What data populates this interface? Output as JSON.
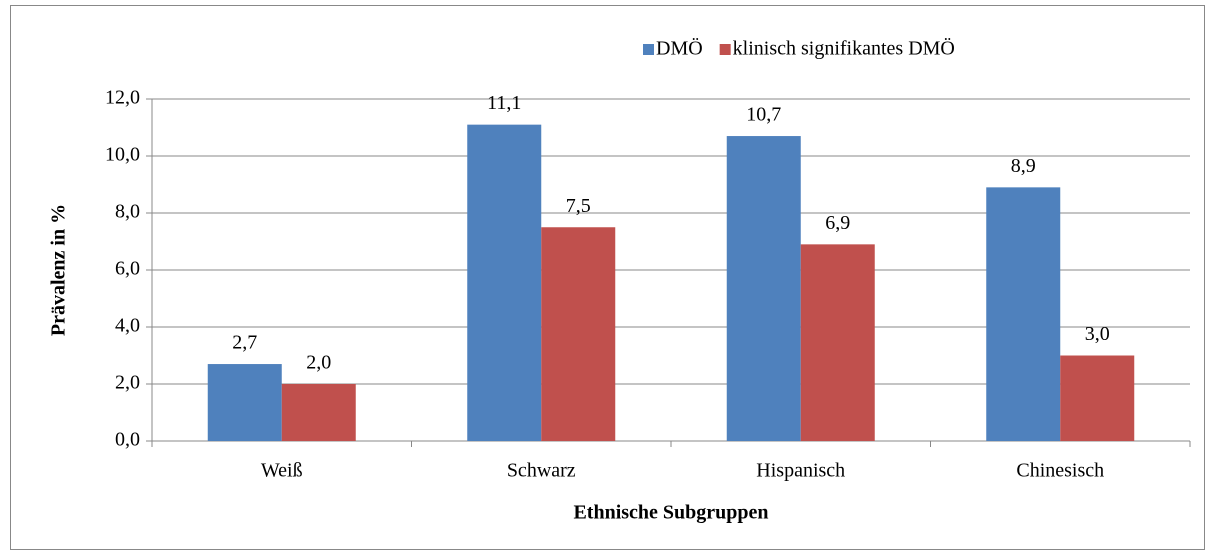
{
  "chart_data": {
    "type": "bar",
    "categories": [
      "Weiß",
      "Schwarz",
      "Hispanisch",
      "Chinesisch"
    ],
    "series": [
      {
        "name": "DMÖ",
        "color": "#4f81bd",
        "values": [
          2.7,
          11.1,
          10.7,
          8.9
        ],
        "value_labels": [
          "2,7",
          "11,1",
          "10,7",
          "8,9"
        ]
      },
      {
        "name": "klinisch signifikantes DMÖ",
        "color": "#c0504d",
        "values": [
          2.0,
          7.5,
          6.9,
          3.0
        ],
        "value_labels": [
          "2,0",
          "7,5",
          "6,9",
          "3,0"
        ]
      }
    ],
    "ylim": [
      0,
      12
    ],
    "yticks": [
      {
        "value": 0,
        "label": "0,0"
      },
      {
        "value": 2,
        "label": "2,0"
      },
      {
        "value": 4,
        "label": "4,0"
      },
      {
        "value": 6,
        "label": "6,0"
      },
      {
        "value": 8,
        "label": "8,0"
      },
      {
        "value": 10,
        "label": "10,0"
      },
      {
        "value": 12,
        "label": "12,0"
      }
    ],
    "xlabel": "Ethnische Subgruppen",
    "ylabel": "Prävalenz in %",
    "grid": true,
    "legend": "top"
  }
}
